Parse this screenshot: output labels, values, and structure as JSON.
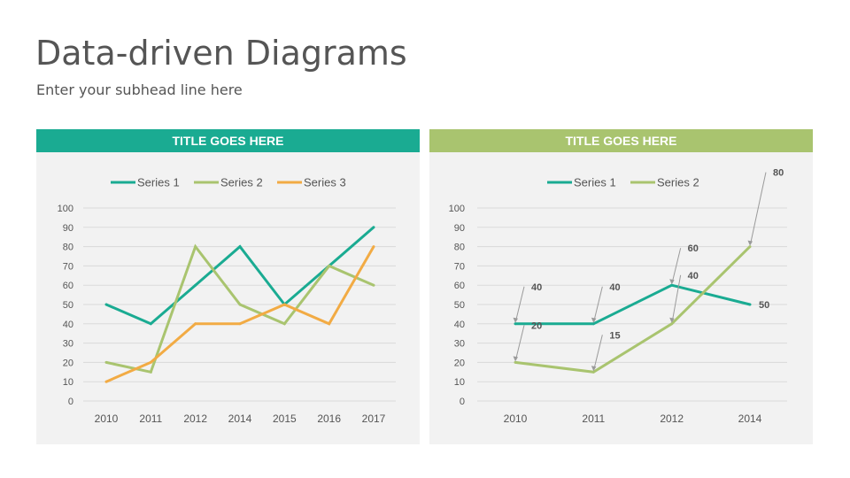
{
  "page": {
    "title": "Data-driven Diagrams",
    "subtitle": "Enter your subhead line here"
  },
  "colors": {
    "teal": "#1aab92",
    "green": "#a9c46f",
    "orange": "#f2ab44",
    "text": "#555555",
    "panel_bg": "#f2f2f2",
    "grid": "#d9d9d9"
  },
  "chart_data": [
    {
      "type": "line",
      "panel_title": "TITLE GOES HERE",
      "header_color": "#1aab92",
      "categories": [
        "2010",
        "2011",
        "2012",
        "2014",
        "2015",
        "2016",
        "2017"
      ],
      "series": [
        {
          "name": "Series 1",
          "color": "#1aab92",
          "values": [
            50,
            40,
            60,
            80,
            50,
            70,
            90
          ]
        },
        {
          "name": "Series 2",
          "color": "#a9c46f",
          "values": [
            20,
            15,
            80,
            50,
            40,
            70,
            60
          ]
        },
        {
          "name": "Series 3",
          "color": "#f2ab44",
          "values": [
            10,
            20,
            40,
            40,
            50,
            40,
            80
          ]
        }
      ],
      "ylim": [
        0,
        100
      ],
      "yticks": [
        0,
        10,
        20,
        30,
        40,
        50,
        60,
        70,
        80,
        90,
        100
      ],
      "grid": true,
      "legend": "top",
      "title": "",
      "xlabel": "",
      "ylabel": ""
    },
    {
      "type": "line",
      "panel_title": "TITLE GOES HERE",
      "header_color": "#a9c46f",
      "categories": [
        "2010",
        "2011",
        "2012",
        "2014"
      ],
      "series": [
        {
          "name": "Series 1",
          "color": "#1aab92",
          "values": [
            40,
            40,
            60,
            50
          ]
        },
        {
          "name": "Series 2",
          "color": "#a9c46f",
          "values": [
            20,
            15,
            40,
            80
          ]
        }
      ],
      "ylim": [
        0,
        100
      ],
      "yticks": [
        0,
        10,
        20,
        30,
        40,
        50,
        60,
        70,
        80,
        90,
        100
      ],
      "grid": true,
      "legend": "top",
      "annotations": [
        {
          "series": 0,
          "index": 0,
          "text": "40",
          "callout": true
        },
        {
          "series": 0,
          "index": 1,
          "text": "40",
          "callout": true
        },
        {
          "series": 0,
          "index": 2,
          "text": "60",
          "callout": true
        },
        {
          "series": 0,
          "index": 3,
          "text": "50",
          "callout": false
        },
        {
          "series": 1,
          "index": 0,
          "text": "20",
          "callout": true
        },
        {
          "series": 1,
          "index": 1,
          "text": "15",
          "callout": true
        },
        {
          "series": 1,
          "index": 2,
          "text": "40",
          "callout": true
        },
        {
          "series": 1,
          "index": 3,
          "text": "80",
          "callout": true
        }
      ],
      "title": "",
      "xlabel": "",
      "ylabel": ""
    }
  ]
}
